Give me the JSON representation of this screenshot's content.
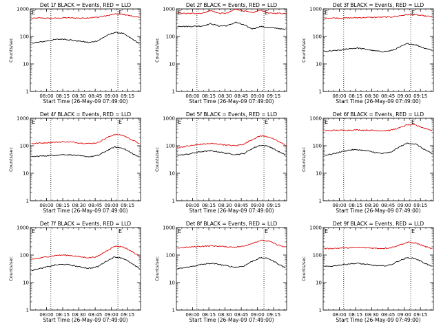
{
  "figure": {
    "background": "#ffffff",
    "colors": {
      "events": "#000000",
      "lld": "#dd0000",
      "axis": "#000000"
    }
  },
  "chart_data": [
    {
      "type": "line",
      "title": "Det 1f BLACK = Events, RED = LLD",
      "xlabel": "Start Time (26-May-09 07:49:00)",
      "ylabel": "Counts/sec",
      "yscale": "log",
      "ylim": [
        1,
        1000
      ],
      "ytick_labels": [
        "1",
        "10",
        "100",
        "1000"
      ],
      "xlim": [
        "07:45",
        "09:27"
      ],
      "xtick_labels": [
        "08:00",
        "08:15",
        "08:30",
        "08:45",
        "09:00",
        "09:15"
      ],
      "vertical_markers": [
        "08:04",
        "09:06"
      ],
      "marker_label": "E",
      "series": [
        {
          "name": "LLD",
          "color": "red",
          "values": [
            450,
            470,
            455,
            460,
            480,
            470,
            465,
            480,
            500,
            560,
            650,
            640,
            560,
            480
          ]
        },
        {
          "name": "Events",
          "color": "black",
          "values": [
            58,
            62,
            70,
            78,
            80,
            72,
            66,
            60,
            70,
            105,
            140,
            130,
            85,
            55
          ]
        }
      ]
    },
    {
      "type": "line",
      "title": "Det 2f BLACK = Events, RED = LLD",
      "xlabel": "Start Time (26-May-09 07:49:00)",
      "ylabel": "Counts/sec",
      "yscale": "log",
      "ylim": [
        1,
        1000
      ],
      "ytick_labels": [
        "1",
        "10",
        "100",
        "1000"
      ],
      "xlim": [
        "07:45",
        "09:27"
      ],
      "xtick_labels": [
        "08:00",
        "08:15",
        "08:30",
        "08:45",
        "09:00",
        "09:15"
      ],
      "vertical_markers": [
        "08:04",
        "09:06"
      ],
      "marker_label": "E",
      "series": [
        {
          "name": "LLD",
          "color": "red",
          "values": [
            720,
            680,
            690,
            700,
            880,
            690,
            700,
            1000,
            850,
            720,
            920,
            690,
            700,
            680
          ]
        },
        {
          "name": "Events",
          "color": "black",
          "values": [
            240,
            230,
            235,
            240,
            290,
            240,
            245,
            330,
            260,
            190,
            230,
            210,
            200,
            175
          ]
        }
      ]
    },
    {
      "type": "line",
      "title": "Det 3f BLACK = Events, RED = LLD",
      "xlabel": "Start Time (26-May-09 07:49:00)",
      "ylabel": "Counts/sec",
      "yscale": "log",
      "ylim": [
        1,
        1000
      ],
      "ytick_labels": [
        "1",
        "10",
        "100",
        "1000"
      ],
      "xlim": [
        "07:45",
        "09:27"
      ],
      "xtick_labels": [
        "08:00",
        "08:15",
        "08:30",
        "08:45",
        "09:00",
        "09:15"
      ],
      "vertical_markers": [
        "08:04",
        "09:06"
      ],
      "marker_label": "E",
      "series": [
        {
          "name": "LLD",
          "color": "red",
          "values": [
            460,
            470,
            465,
            470,
            480,
            490,
            495,
            500,
            510,
            560,
            620,
            610,
            560,
            520
          ]
        },
        {
          "name": "Events",
          "color": "black",
          "values": [
            28,
            30,
            32,
            36,
            38,
            34,
            30,
            28,
            30,
            40,
            55,
            50,
            38,
            32
          ]
        }
      ]
    },
    {
      "type": "line",
      "title": "Det 4f BLACK = Events, RED = LLD",
      "xlabel": "Start Time (26-May-09 07:49:00)",
      "ylabel": "Counts/sec",
      "yscale": "log",
      "ylim": [
        1,
        1000
      ],
      "ytick_labels": [
        "1",
        "10",
        "100",
        "1000"
      ],
      "xlim": [
        "07:45",
        "09:27"
      ],
      "xtick_labels": [
        "08:00",
        "08:15",
        "08:30",
        "08:45",
        "09:00",
        "09:15"
      ],
      "vertical_markers": [
        "08:04",
        "09:06"
      ],
      "marker_label": "E",
      "series": [
        {
          "name": "LLD",
          "color": "red",
          "values": [
            120,
            125,
            130,
            135,
            140,
            135,
            125,
            120,
            130,
            190,
            260,
            240,
            170,
            120
          ]
        },
        {
          "name": "Events",
          "color": "black",
          "values": [
            40,
            42,
            44,
            46,
            48,
            46,
            42,
            40,
            44,
            65,
            90,
            82,
            55,
            38
          ]
        }
      ]
    },
    {
      "type": "line",
      "title": "Det 5f BLACK = Events, RED = LLD",
      "xlabel": "Start Time (26-May-09 07:49:00)",
      "ylabel": "Counts/sec",
      "yscale": "log",
      "ylim": [
        1,
        1000
      ],
      "ytick_labels": [
        "1",
        "10",
        "100",
        "1000"
      ],
      "xlim": [
        "07:45",
        "09:27"
      ],
      "xtick_labels": [
        "08:00",
        "08:15",
        "08:30",
        "08:45",
        "09:00",
        "09:15"
      ],
      "vertical_markers": [
        "08:04",
        "09:06"
      ],
      "marker_label": "E",
      "series": [
        {
          "name": "LLD",
          "color": "red",
          "values": [
            85,
            95,
            105,
            115,
            120,
            115,
            105,
            100,
            115,
            170,
            230,
            210,
            150,
            105
          ]
        },
        {
          "name": "Events",
          "color": "black",
          "values": [
            45,
            48,
            55,
            62,
            65,
            60,
            52,
            48,
            52,
            80,
            105,
            95,
            65,
            45
          ]
        }
      ]
    },
    {
      "type": "line",
      "title": "Det 6f BLACK = Events, RED = LLD",
      "xlabel": "Start Time (26-May-09 07:49:00)",
      "ylabel": "Counts/sec",
      "yscale": "log",
      "ylim": [
        1,
        1000
      ],
      "ytick_labels": [
        "1",
        "10",
        "100",
        "1000"
      ],
      "xlim": [
        "07:45",
        "09:27"
      ],
      "xtick_labels": [
        "08:00",
        "08:15",
        "08:30",
        "08:45",
        "09:00",
        "09:15"
      ],
      "vertical_markers": [
        "08:04",
        "09:06"
      ],
      "marker_label": "E",
      "series": [
        {
          "name": "LLD",
          "color": "red",
          "values": [
            350,
            360,
            365,
            370,
            375,
            370,
            360,
            355,
            370,
            440,
            580,
            560,
            440,
            360
          ]
        },
        {
          "name": "Events",
          "color": "black",
          "values": [
            45,
            50,
            60,
            70,
            72,
            66,
            58,
            52,
            58,
            90,
            125,
            115,
            75,
            50
          ]
        }
      ]
    },
    {
      "type": "line",
      "title": "Det 7f BLACK = Events, RED = LLD",
      "xlabel": "Start Time (26-May-09 07:49:00)",
      "ylabel": "Counts/sec",
      "yscale": "log",
      "ylim": [
        1,
        1000
      ],
      "ytick_labels": [
        "1",
        "10",
        "100",
        "1000"
      ],
      "xlim": [
        "07:45",
        "09:27"
      ],
      "xtick_labels": [
        "08:00",
        "08:15",
        "08:30",
        "08:45",
        "09:00",
        "09:15"
      ],
      "vertical_markers": [
        "08:04",
        "09:06"
      ],
      "marker_label": "E",
      "series": [
        {
          "name": "LLD",
          "color": "red",
          "values": [
            70,
            78,
            88,
            98,
            100,
            95,
            85,
            80,
            90,
            140,
            210,
            200,
            140,
            90
          ]
        },
        {
          "name": "Events",
          "color": "black",
          "values": [
            28,
            32,
            38,
            44,
            46,
            42,
            36,
            33,
            38,
            60,
            85,
            78,
            50,
            32
          ]
        }
      ]
    },
    {
      "type": "line",
      "title": "Det 8f BLACK = Events, RED = LLD",
      "xlabel": "Start Time (26-May-09 07:49:00)",
      "ylabel": "Counts/sec",
      "yscale": "log",
      "ylim": [
        1,
        1000
      ],
      "ytick_labels": [
        "1",
        "10",
        "100",
        "1000"
      ],
      "xlim": [
        "07:45",
        "09:27"
      ],
      "xtick_labels": [
        "08:00",
        "08:15",
        "08:30",
        "08:45",
        "09:00",
        "09:15"
      ],
      "vertical_markers": [
        "08:04",
        "09:06"
      ],
      "marker_label": "E",
      "series": [
        {
          "name": "LLD",
          "color": "red",
          "values": [
            180,
            190,
            200,
            210,
            215,
            210,
            200,
            195,
            210,
            270,
            340,
            320,
            240,
            190
          ]
        },
        {
          "name": "Events",
          "color": "black",
          "values": [
            32,
            35,
            40,
            46,
            50,
            46,
            40,
            36,
            40,
            60,
            80,
            74,
            50,
            34
          ]
        }
      ]
    },
    {
      "type": "line",
      "title": "Det 9f BLACK = Events, RED = LLD",
      "xlabel": "Start Time (26-May-09 07:49:00)",
      "ylabel": "Counts/sec",
      "yscale": "log",
      "ylim": [
        1,
        1000
      ],
      "ytick_labels": [
        "1",
        "10",
        "100",
        "1000"
      ],
      "xlim": [
        "07:45",
        "09:27"
      ],
      "xtick_labels": [
        "08:00",
        "08:15",
        "08:30",
        "08:45",
        "09:00",
        "09:15"
      ],
      "vertical_markers": [
        "08:04",
        "09:06"
      ],
      "marker_label": "E",
      "series": [
        {
          "name": "LLD",
          "color": "red",
          "values": [
            170,
            175,
            180,
            185,
            190,
            185,
            178,
            175,
            185,
            230,
            290,
            275,
            210,
            170
          ]
        },
        {
          "name": "Events",
          "color": "black",
          "values": [
            38,
            40,
            44,
            48,
            50,
            46,
            42,
            40,
            44,
            62,
            80,
            74,
            52,
            38
          ]
        }
      ]
    }
  ]
}
